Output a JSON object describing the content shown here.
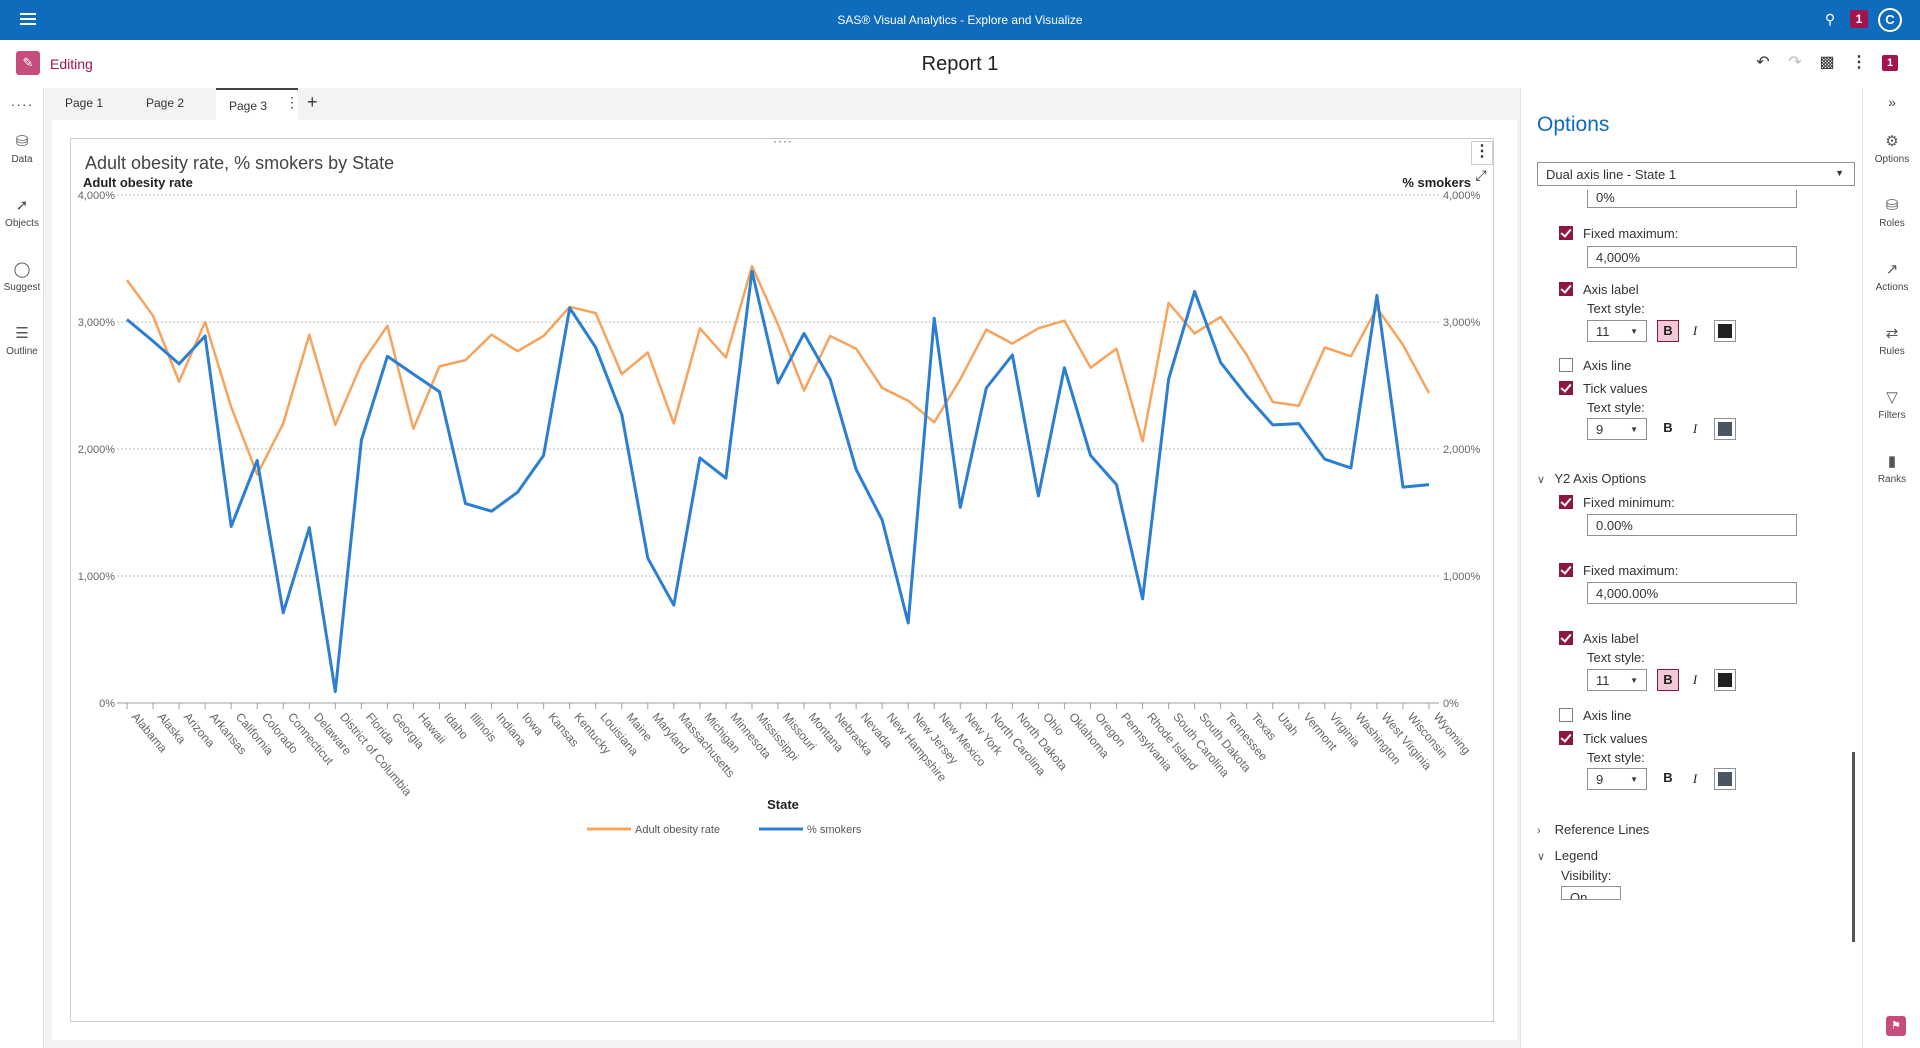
{
  "app": {
    "title": "SAS® Visual Analytics - Explore and Visualize",
    "badge": "1",
    "avatar": "C"
  },
  "report": {
    "mode_label": "Editing",
    "title": "Report 1",
    "badge": "1"
  },
  "left_rail": {
    "items": [
      {
        "label": "Data",
        "icon": "database-icon"
      },
      {
        "label": "Objects",
        "icon": "chart-icon"
      },
      {
        "label": "Suggest",
        "icon": "lightbulb-icon"
      },
      {
        "label": "Outline",
        "icon": "list-icon"
      }
    ]
  },
  "tabs": [
    {
      "label": "Page 1"
    },
    {
      "label": "Page 2"
    },
    {
      "label": "Page 3",
      "active": true
    }
  ],
  "chart_data": {
    "type": "line",
    "title": "Adult obesity rate, % smokers by State",
    "ylabel": "Adult obesity rate",
    "y2label": "% smokers",
    "xlabel": "State",
    "ylim": [
      0,
      4000
    ],
    "y2lim": [
      0,
      4000
    ],
    "yticks": [
      "0%",
      "1,000%",
      "2,000%",
      "3,000%",
      "4,000%"
    ],
    "y2ticks": [
      "0%",
      "1,000%",
      "2,000%",
      "3,000%",
      "4,000%"
    ],
    "grid": true,
    "legend_position": "bottom",
    "categories": [
      "Alabama",
      "Alaska",
      "Arizona",
      "Arkansas",
      "California",
      "Colorado",
      "Connecticut",
      "Delaware",
      "District of Columbia",
      "Florida",
      "Georgia",
      "Hawaii",
      "Idaho",
      "Illinois",
      "Indiana",
      "Iowa",
      "Kansas",
      "Kentucky",
      "Louisiana",
      "Maine",
      "Maryland",
      "Massachusetts",
      "Michigan",
      "Minnesota",
      "Mississippi",
      "Missouri",
      "Montana",
      "Nebraska",
      "Nevada",
      "New Hampshire",
      "New Jersey",
      "New Mexico",
      "New York",
      "North Carolina",
      "North Dakota",
      "Ohio",
      "Oklahoma",
      "Oregon",
      "Pennsylvania",
      "Rhode Island",
      "South Carolina",
      "South Dakota",
      "Tennessee",
      "Texas",
      "Utah",
      "Vermont",
      "Virginia",
      "Washington",
      "West Virginia",
      "Wisconsin",
      "Wyoming"
    ],
    "series": [
      {
        "name": "Adult obesity rate",
        "color": "#f7a35c",
        "axis": "left",
        "values": [
          3330,
          3050,
          2530,
          3000,
          2330,
          1800,
          2200,
          2900,
          2190,
          2670,
          2970,
          2160,
          2650,
          2700,
          2900,
          2770,
          2890,
          3120,
          3070,
          2590,
          2760,
          2200,
          2950,
          2720,
          3440,
          2980,
          2460,
          2890,
          2790,
          2480,
          2380,
          2210,
          2550,
          2940,
          2830,
          2950,
          3010,
          2640,
          2790,
          2060,
          3150,
          2910,
          3040,
          2740,
          2370,
          2340,
          2800,
          2730,
          3110,
          2820,
          2440
        ]
      },
      {
        "name": "% smokers",
        "color": "#2b7ed2",
        "axis": "right",
        "values": [
          3020,
          2850,
          2670,
          2890,
          1390,
          1910,
          710,
          1380,
          90,
          2070,
          2730,
          2590,
          2450,
          1570,
          1510,
          1660,
          1950,
          3110,
          2800,
          2270,
          1140,
          770,
          1930,
          1770,
          3400,
          2520,
          2910,
          2550,
          1840,
          1440,
          630,
          3030,
          1540,
          2480,
          2740,
          1630,
          2640,
          1950,
          1720,
          820,
          2550,
          3240,
          2680,
          2420,
          2190,
          2200,
          1920,
          1850,
          3210,
          1700,
          1720
        ]
      }
    ]
  },
  "options": {
    "title": "Options",
    "object_select": "Dual axis line - State 1",
    "y1": {
      "fixed_min_value": "0%",
      "fixed_max_label": "Fixed maximum:",
      "fixed_max_value": "4,000%",
      "axis_label": "Axis label",
      "text_style": "Text style:",
      "axis_label_size": "11",
      "axis_line": "Axis line",
      "tick_values": "Tick values",
      "tick_size": "9"
    },
    "y2": {
      "section": "Y2 Axis Options",
      "fixed_min_label": "Fixed minimum:",
      "fixed_min_value": "0.00%",
      "fixed_max_label": "Fixed maximum:",
      "fixed_max_value": "4,000.00%",
      "axis_label": "Axis label",
      "text_style": "Text style:",
      "axis_label_size": "11",
      "axis_line": "Axis line",
      "tick_values": "Tick values",
      "tick_size": "9"
    },
    "reference_lines": "Reference Lines",
    "legend": "Legend",
    "visibility": "Visibility:",
    "visibility_value": "On",
    "bold": "B",
    "italic": "I",
    "text_color": "#222222",
    "tick_color": "#4a5562"
  },
  "right_rail": {
    "items": [
      {
        "label": "Options",
        "icon": "palette-icon"
      },
      {
        "label": "Roles",
        "icon": "roles-icon"
      },
      {
        "label": "Actions",
        "icon": "actions-icon"
      },
      {
        "label": "Rules",
        "icon": "rules-icon"
      },
      {
        "label": "Filters",
        "icon": "filter-icon"
      },
      {
        "label": "Ranks",
        "icon": "ranks-icon"
      }
    ]
  }
}
